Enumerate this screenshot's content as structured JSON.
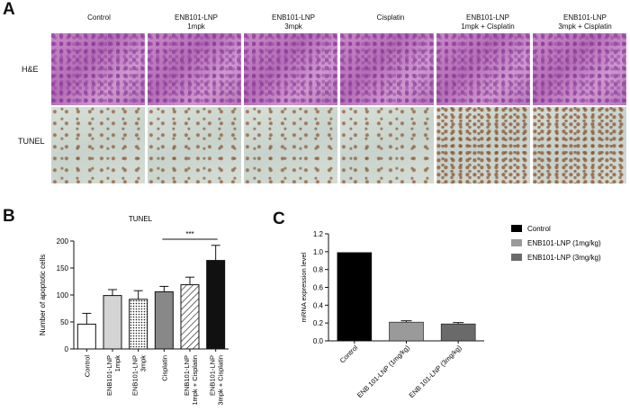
{
  "panel_a": {
    "letter": "A",
    "columns": [
      "Control",
      "ENB101-LNP\n1mpk",
      "ENB101-LNP\n3mpk",
      "Cisplatin",
      "ENB101-LNP\n1mpk + Cisplatin",
      "ENB101-LNP\n3mpk + Cisplatin"
    ],
    "rows": [
      "H&E",
      "TUNEL"
    ]
  },
  "panel_b": {
    "letter": "B",
    "chart_data": {
      "type": "bar",
      "title": "TUNEL",
      "ylabel": "Number of apoptotic cells",
      "ylim": [
        0,
        200
      ],
      "yticks": [
        0,
        50,
        100,
        150,
        200
      ],
      "categories": [
        "Control",
        "ENB101-LNP\n1mpk",
        "ENB101-LNP\n3mpk",
        "Cisplatin",
        "ENB101-LNP\n1mpk + Cisplatin",
        "ENB101-LNP\n3mpk + Cisplatin"
      ],
      "values": [
        46,
        99,
        92,
        106,
        119,
        164
      ],
      "errors": [
        20,
        11,
        16,
        10,
        14,
        28
      ],
      "fills": [
        "#ffffff",
        "#d4d4d4",
        "dots",
        "#888888",
        "hatch",
        "#111111"
      ],
      "significance": "***"
    }
  },
  "panel_c": {
    "letter": "C",
    "chart_data": {
      "type": "bar",
      "ylabel": "mRNA expression level",
      "ylim": [
        0,
        1.2
      ],
      "yticks": [
        "0.0",
        "0.2",
        "0.4",
        "0.6",
        "0.8",
        "1.0",
        "1.2"
      ],
      "categories": [
        "Control",
        "ENB 101-LNP (1mg/kg)",
        "ENB 101-LNP (3mg/kg)"
      ],
      "values": [
        0.99,
        0.21,
        0.19
      ],
      "errors": [
        0,
        0.015,
        0.015
      ],
      "colors": [
        "#000000",
        "#9a9a9a",
        "#6a6a6a"
      ],
      "legend": [
        "Control",
        "ENB101-LNP (1mg/kg)",
        "ENB101-LNP (3mg/kg)"
      ]
    }
  }
}
